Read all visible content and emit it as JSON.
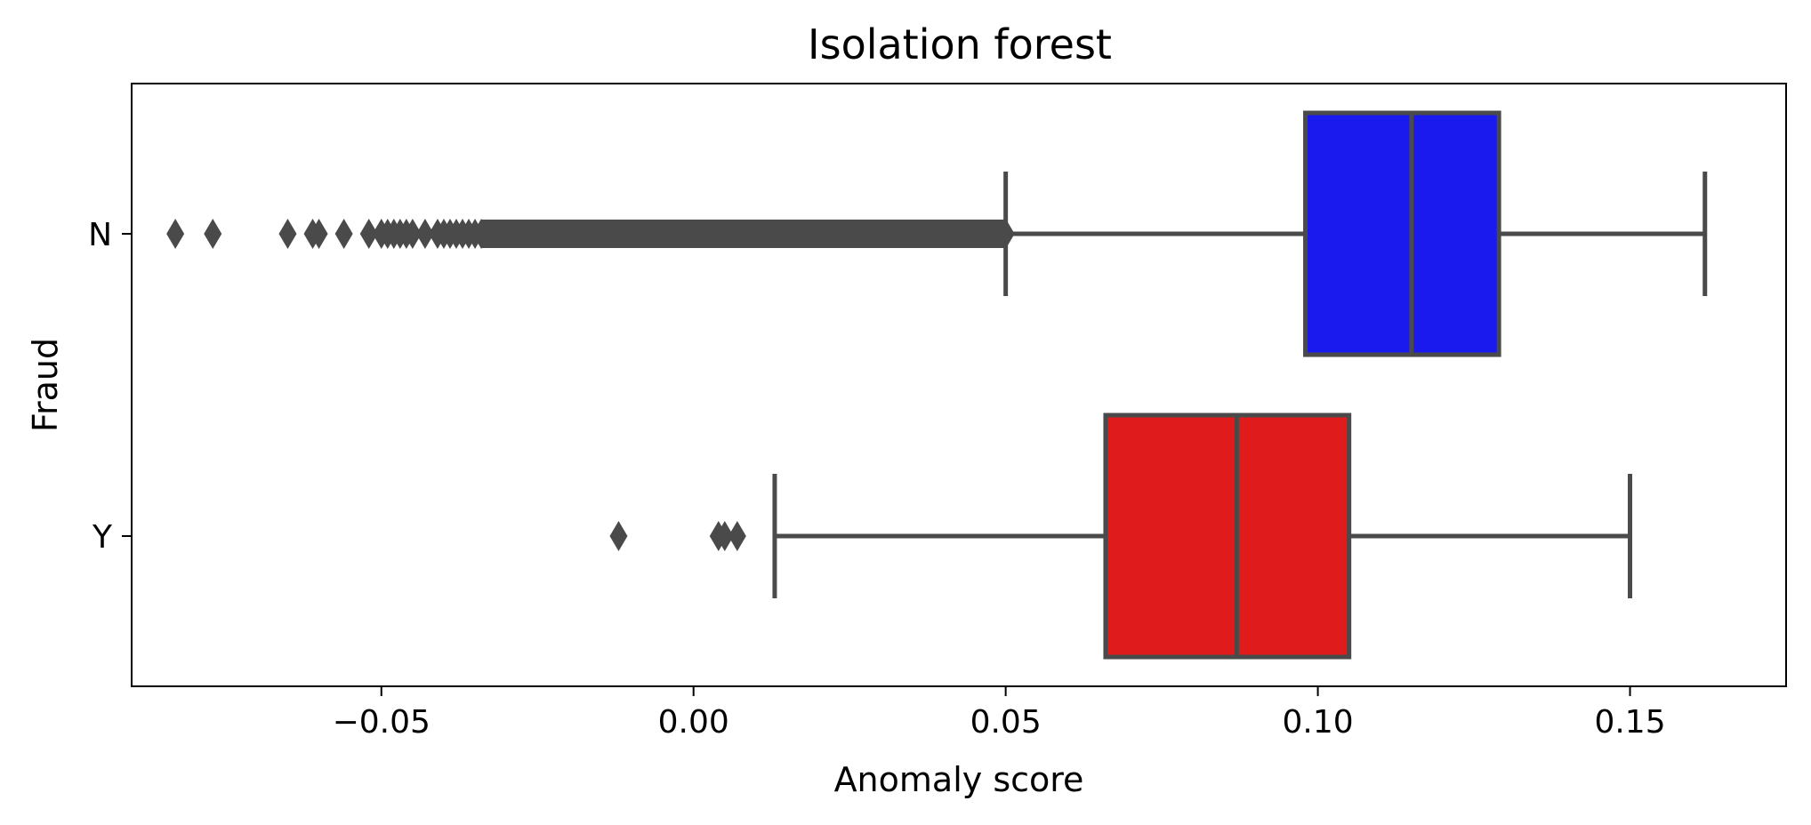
{
  "chart_data": {
    "type": "boxplot",
    "orientation": "horizontal",
    "title": "Isolation forest",
    "xlabel": "Anomaly score",
    "ylabel": "Fraud",
    "xlim": [
      -0.09,
      0.175
    ],
    "x_ticks": [
      -0.05,
      0.0,
      0.05,
      0.1,
      0.15
    ],
    "x_tick_labels": [
      "−0.05",
      "0.00",
      "0.05",
      "0.10",
      "0.15"
    ],
    "categories": [
      "N",
      "Y"
    ],
    "grid": false,
    "series": [
      {
        "category": "N",
        "color": "#1a1aee",
        "whisker_low": 0.05,
        "q1": 0.098,
        "median": 0.115,
        "q3": 0.129,
        "whisker_high": 0.162,
        "outliers": [
          -0.083,
          -0.077,
          -0.065,
          -0.061,
          -0.06,
          -0.056,
          -0.052,
          -0.05,
          -0.049,
          -0.048,
          -0.047,
          -0.046,
          -0.045,
          -0.043,
          -0.041,
          -0.04,
          -0.039,
          -0.038,
          -0.037,
          -0.036,
          -0.035,
          -0.034
        ],
        "outlier_dense_range": [
          -0.034,
          0.05
        ]
      },
      {
        "category": "Y",
        "color": "#e01b1b",
        "whisker_low": 0.013,
        "q1": 0.066,
        "median": 0.087,
        "q3": 0.105,
        "whisker_high": 0.15,
        "outliers": [
          -0.012,
          0.004,
          0.005,
          0.007
        ],
        "outlier_dense_range": null
      }
    ],
    "line_color": "#4a4a4a"
  }
}
